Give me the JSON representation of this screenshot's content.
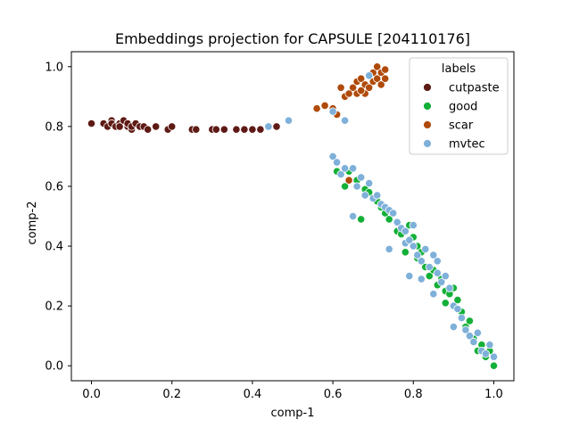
{
  "chart_data": {
    "type": "scatter",
    "title": "Embeddings projection for CAPSULE [204110176]",
    "xlabel": "comp-1",
    "ylabel": "comp-2",
    "xlim": [
      -0.05,
      1.05
    ],
    "ylim": [
      -0.05,
      1.05
    ],
    "xticks": [
      "0.0",
      "0.2",
      "0.4",
      "0.6",
      "0.8",
      "1.0"
    ],
    "yticks": [
      "0.0",
      "0.2",
      "0.4",
      "0.6",
      "0.8",
      "1.0"
    ],
    "grid": false,
    "legend": {
      "title": "labels",
      "placement": "top-right"
    },
    "series": [
      {
        "name": "cutpaste",
        "color": "#5e1a14",
        "points": [
          [
            0.0,
            0.81
          ],
          [
            0.03,
            0.81
          ],
          [
            0.04,
            0.8
          ],
          [
            0.05,
            0.82
          ],
          [
            0.05,
            0.81
          ],
          [
            0.06,
            0.8
          ],
          [
            0.07,
            0.81
          ],
          [
            0.07,
            0.8
          ],
          [
            0.08,
            0.82
          ],
          [
            0.09,
            0.8
          ],
          [
            0.09,
            0.81
          ],
          [
            0.1,
            0.79
          ],
          [
            0.1,
            0.8
          ],
          [
            0.11,
            0.81
          ],
          [
            0.12,
            0.8
          ],
          [
            0.13,
            0.8
          ],
          [
            0.14,
            0.79
          ],
          [
            0.16,
            0.8
          ],
          [
            0.19,
            0.79
          ],
          [
            0.2,
            0.8
          ],
          [
            0.25,
            0.79
          ],
          [
            0.26,
            0.79
          ],
          [
            0.3,
            0.79
          ],
          [
            0.31,
            0.79
          ],
          [
            0.33,
            0.79
          ],
          [
            0.36,
            0.79
          ],
          [
            0.38,
            0.79
          ],
          [
            0.4,
            0.79
          ],
          [
            0.42,
            0.79
          ],
          [
            0.44,
            0.8
          ],
          [
            0.46,
            0.8
          ]
        ]
      },
      {
        "name": "good",
        "color": "#13b037",
        "points": [
          [
            0.61,
            0.65
          ],
          [
            0.63,
            0.6
          ],
          [
            0.64,
            0.65
          ],
          [
            0.66,
            0.62
          ],
          [
            0.67,
            0.49
          ],
          [
            0.68,
            0.59
          ],
          [
            0.69,
            0.58
          ],
          [
            0.71,
            0.55
          ],
          [
            0.72,
            0.53
          ],
          [
            0.73,
            0.51
          ],
          [
            0.74,
            0.49
          ],
          [
            0.76,
            0.45
          ],
          [
            0.77,
            0.44
          ],
          [
            0.78,
            0.38
          ],
          [
            0.79,
            0.47
          ],
          [
            0.8,
            0.43
          ],
          [
            0.81,
            0.4
          ],
          [
            0.81,
            0.36
          ],
          [
            0.82,
            0.38
          ],
          [
            0.83,
            0.33
          ],
          [
            0.84,
            0.3
          ],
          [
            0.85,
            0.32
          ],
          [
            0.86,
            0.27
          ],
          [
            0.87,
            0.29
          ],
          [
            0.88,
            0.25
          ],
          [
            0.88,
            0.21
          ],
          [
            0.89,
            0.24
          ],
          [
            0.9,
            0.26
          ],
          [
            0.91,
            0.22
          ],
          [
            0.92,
            0.18
          ],
          [
            0.93,
            0.13
          ],
          [
            0.94,
            0.15
          ],
          [
            0.95,
            0.09
          ],
          [
            0.96,
            0.05
          ],
          [
            0.97,
            0.07
          ],
          [
            0.98,
            0.03
          ],
          [
            0.99,
            0.05
          ],
          [
            1.0,
            0.0
          ]
        ]
      },
      {
        "name": "scar",
        "color": "#b04a0a",
        "points": [
          [
            0.56,
            0.86
          ],
          [
            0.58,
            0.87
          ],
          [
            0.6,
            0.86
          ],
          [
            0.61,
            0.84
          ],
          [
            0.62,
            0.93
          ],
          [
            0.63,
            0.9
          ],
          [
            0.64,
            0.62
          ],
          [
            0.65,
            0.93
          ],
          [
            0.66,
            0.95
          ],
          [
            0.66,
            0.91
          ],
          [
            0.67,
            0.96
          ],
          [
            0.68,
            0.94
          ],
          [
            0.68,
            0.91
          ],
          [
            0.69,
            0.97
          ],
          [
            0.69,
            0.93
          ],
          [
            0.7,
            0.98
          ],
          [
            0.7,
            0.95
          ],
          [
            0.71,
            1.0
          ],
          [
            0.71,
            0.96
          ],
          [
            0.72,
            0.98
          ],
          [
            0.72,
            0.94
          ],
          [
            0.73,
            0.99
          ],
          [
            0.73,
            0.96
          ],
          [
            0.64,
            0.91
          ],
          [
            0.67,
            0.92
          ]
        ]
      },
      {
        "name": "mvtec",
        "color": "#7eb0d9",
        "points": [
          [
            0.44,
            0.8
          ],
          [
            0.49,
            0.82
          ],
          [
            0.6,
            0.85
          ],
          [
            0.63,
            0.82
          ],
          [
            0.6,
            0.7
          ],
          [
            0.61,
            0.68
          ],
          [
            0.62,
            0.64
          ],
          [
            0.63,
            0.66
          ],
          [
            0.65,
            0.66
          ],
          [
            0.66,
            0.6
          ],
          [
            0.67,
            0.63
          ],
          [
            0.68,
            0.57
          ],
          [
            0.69,
            0.61
          ],
          [
            0.7,
            0.56
          ],
          [
            0.71,
            0.57
          ],
          [
            0.72,
            0.54
          ],
          [
            0.73,
            0.53
          ],
          [
            0.74,
            0.52
          ],
          [
            0.75,
            0.51
          ],
          [
            0.76,
            0.48
          ],
          [
            0.77,
            0.46
          ],
          [
            0.78,
            0.45
          ],
          [
            0.78,
            0.41
          ],
          [
            0.79,
            0.42
          ],
          [
            0.8,
            0.47
          ],
          [
            0.8,
            0.4
          ],
          [
            0.81,
            0.37
          ],
          [
            0.82,
            0.35
          ],
          [
            0.83,
            0.39
          ],
          [
            0.84,
            0.33
          ],
          [
            0.85,
            0.37
          ],
          [
            0.86,
            0.31
          ],
          [
            0.86,
            0.35
          ],
          [
            0.87,
            0.28
          ],
          [
            0.88,
            0.3
          ],
          [
            0.89,
            0.26
          ],
          [
            0.9,
            0.2
          ],
          [
            0.91,
            0.19
          ],
          [
            0.92,
            0.16
          ],
          [
            0.93,
            0.12
          ],
          [
            0.94,
            0.1
          ],
          [
            0.95,
            0.08
          ],
          [
            0.96,
            0.11
          ],
          [
            0.97,
            0.05
          ],
          [
            0.98,
            0.04
          ],
          [
            0.99,
            0.07
          ],
          [
            1.0,
            0.03
          ],
          [
            0.74,
            0.39
          ],
          [
            0.79,
            0.3
          ],
          [
            0.82,
            0.29
          ],
          [
            0.85,
            0.24
          ],
          [
            0.9,
            0.13
          ],
          [
            0.65,
            0.5
          ],
          [
            0.69,
            0.97
          ]
        ]
      }
    ]
  }
}
